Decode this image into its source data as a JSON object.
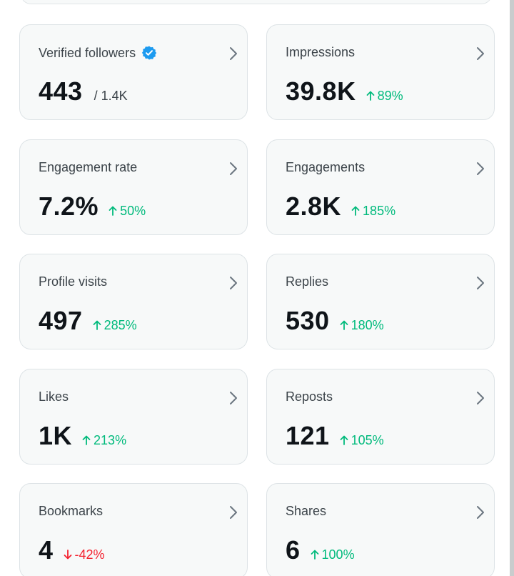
{
  "metrics": [
    {
      "title": "Verified followers",
      "value": "443",
      "secondary": "/ 1.4K",
      "verified": true
    },
    {
      "title": "Impressions",
      "value": "39.8K",
      "change": "89%",
      "direction": "up"
    },
    {
      "title": "Engagement rate",
      "value": "7.2%",
      "change": "50%",
      "direction": "up"
    },
    {
      "title": "Engagements",
      "value": "2.8K",
      "change": "185%",
      "direction": "up"
    },
    {
      "title": "Profile visits",
      "value": "497",
      "change": "285%",
      "direction": "up"
    },
    {
      "title": "Replies",
      "value": "530",
      "change": "180%",
      "direction": "up"
    },
    {
      "title": "Likes",
      "value": "1K",
      "change": "213%",
      "direction": "up"
    },
    {
      "title": "Reposts",
      "value": "121",
      "change": "105%",
      "direction": "up"
    },
    {
      "title": "Bookmarks",
      "value": "4",
      "change": "-42%",
      "direction": "down"
    },
    {
      "title": "Shares",
      "value": "6",
      "change": "100%",
      "direction": "up"
    }
  ],
  "icons": {
    "verified": "verified-badge-icon",
    "chevron": "chevron-right-icon",
    "up": "arrow-up-icon",
    "down": "arrow-down-icon"
  },
  "colors": {
    "up": "#00ba7c",
    "down": "#f4212e",
    "verified": "#1d9bf0"
  }
}
